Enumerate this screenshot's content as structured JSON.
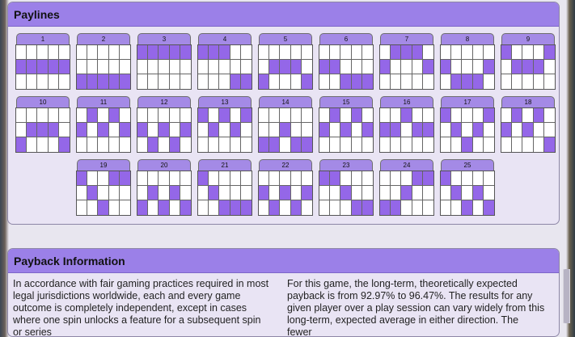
{
  "paylines": {
    "title": "Paylines",
    "items": [
      {
        "label": "1",
        "rows": [
          1,
          1,
          1,
          1,
          1
        ]
      },
      {
        "label": "2",
        "rows": [
          2,
          2,
          2,
          2,
          2
        ]
      },
      {
        "label": "3",
        "rows": [
          0,
          0,
          0,
          0,
          0
        ]
      },
      {
        "label": "4",
        "rows": [
          0,
          0,
          0,
          2,
          2
        ]
      },
      {
        "label": "5",
        "rows": [
          2,
          1,
          1,
          1,
          2
        ]
      },
      {
        "label": "6",
        "rows": [
          1,
          1,
          2,
          2,
          2
        ]
      },
      {
        "label": "7",
        "rows": [
          1,
          0,
          0,
          0,
          1
        ]
      },
      {
        "label": "8",
        "rows": [
          1,
          2,
          2,
          2,
          1
        ]
      },
      {
        "label": "9",
        "rows": [
          0,
          1,
          1,
          1,
          0
        ]
      },
      {
        "label": "10",
        "rows": [
          2,
          1,
          1,
          1,
          2
        ]
      },
      {
        "label": "11",
        "rows": [
          1,
          0,
          1,
          0,
          1
        ]
      },
      {
        "label": "12",
        "rows": [
          1,
          2,
          1,
          2,
          1
        ]
      },
      {
        "label": "13",
        "rows": [
          0,
          1,
          0,
          1,
          0
        ]
      },
      {
        "label": "14",
        "rows": [
          2,
          2,
          1,
          2,
          2
        ]
      },
      {
        "label": "15",
        "rows": [
          1,
          0,
          1,
          0,
          1
        ]
      },
      {
        "label": "16",
        "rows": [
          1,
          1,
          0,
          1,
          1
        ]
      },
      {
        "label": "17",
        "rows": [
          0,
          1,
          2,
          1,
          0
        ]
      },
      {
        "label": "18",
        "rows": [
          1,
          0,
          1,
          0,
          2
        ]
      },
      {
        "label": "19",
        "rows": [
          0,
          1,
          2,
          0,
          0
        ]
      },
      {
        "label": "20",
        "rows": [
          2,
          1,
          2,
          1,
          2
        ]
      },
      {
        "label": "21",
        "rows": [
          0,
          1,
          2,
          2,
          2
        ]
      },
      {
        "label": "22",
        "rows": [
          1,
          2,
          1,
          2,
          1
        ]
      },
      {
        "label": "23",
        "rows": [
          0,
          0,
          1,
          2,
          2
        ]
      },
      {
        "label": "24",
        "rows": [
          2,
          2,
          1,
          0,
          0
        ]
      },
      {
        "label": "25",
        "rows": [
          0,
          1,
          2,
          1,
          2
        ]
      }
    ]
  },
  "payback": {
    "title": "Payback Information",
    "left_text": "In accordance with fair gaming practices required in most legal jurisdictions worldwide, each and every game outcome is completely independent, except in cases where one spin unlocks a feature for a subsequent spin or series",
    "right_text": "For this game, the long-term, theoretically expected payback is from 92.97% to 96.47%. The results for any given player over a play session can vary widely from this long-term, expected average in either direction. The fewer"
  },
  "colors": {
    "header": "#9b80e8",
    "active_cell": "#9467e8",
    "panel_bg": "#e9e4f4"
  }
}
